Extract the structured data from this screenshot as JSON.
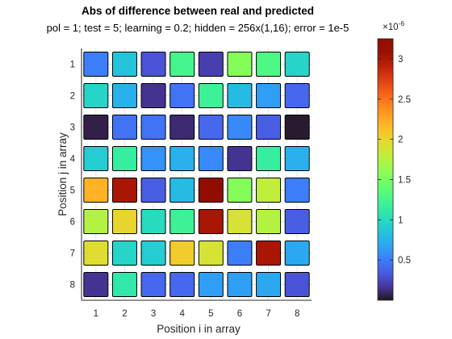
{
  "chart_data": {
    "type": "heatmap",
    "title": "Abs of difference between real and predicted",
    "subtitle": "pol = 1; test = 5; learning = 0.2; hidden = 256x(1,16); error = 1e-5",
    "xlabel": "Position i in array",
    "ylabel": "Position j in array",
    "x_ticks": [
      "1",
      "2",
      "3",
      "4",
      "5",
      "6",
      "7",
      "8"
    ],
    "y_ticks": [
      "1",
      "2",
      "3",
      "4",
      "5",
      "6",
      "7",
      "8"
    ],
    "xlim": [
      0.5,
      8.5
    ],
    "ylim": [
      0.5,
      8.5
    ],
    "y_direction": "reverse",
    "grid": true,
    "colormap": "turbo",
    "clim": [
      0.0,
      3.25e-06
    ],
    "colorbar": {
      "ticks": [
        0.5,
        1,
        1.5,
        2,
        2.5,
        3
      ],
      "tick_labels": [
        "0.5",
        "1",
        "1.5",
        "2",
        "2.5",
        "3"
      ],
      "exponent_label": "×10",
      "exponent_power": "-6",
      "location": "right"
    },
    "values_unit": 1e-06,
    "values": [
      [
        0.5,
        0.85,
        0.3,
        1.25,
        0.2,
        1.55,
        1.3,
        0.95
      ],
      [
        0.95,
        0.75,
        0.15,
        0.45,
        1.2,
        0.8,
        0.65,
        0.4
      ],
      [
        0.05,
        0.45,
        0.45,
        0.1,
        0.4,
        0.55,
        0.35,
        0.02
      ],
      [
        0.9,
        1.15,
        0.6,
        0.75,
        0.55,
        0.15,
        1.15,
        0.75
      ],
      [
        2.2,
        3.0,
        0.35,
        0.8,
        3.25,
        1.55,
        1.8,
        0.5
      ],
      [
        1.75,
        2.0,
        1.0,
        1.2,
        3.0,
        1.9,
        1.75,
        0.35
      ],
      [
        1.95,
        0.95,
        0.9,
        2.05,
        1.9,
        0.5,
        3.0,
        0.7
      ],
      [
        0.15,
        1.1,
        0.4,
        0.4,
        0.65,
        0.65,
        0.7,
        0.3
      ]
    ]
  }
}
